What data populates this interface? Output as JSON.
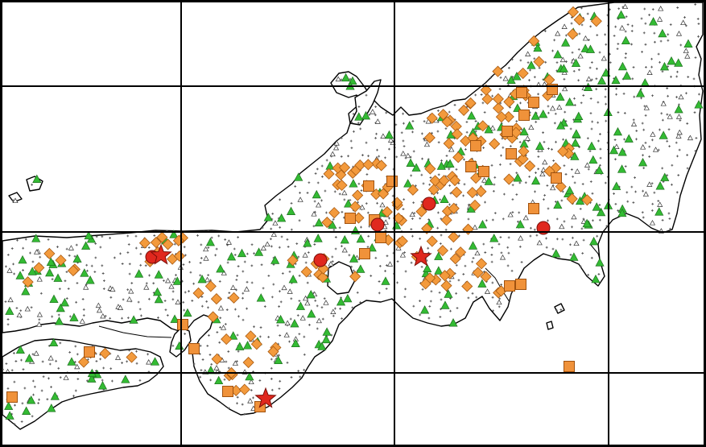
{
  "map": {
    "kind": "seismic-station-map",
    "region_name_on_screen": "",
    "colors": {
      "frame": "#000000",
      "coastline": "#000000",
      "land": "#ffffff",
      "grid": "#000000",
      "small_station": "#555555",
      "open_triangle_station": "#ffffff",
      "green_triangle_station": "#33bb33",
      "orange_diamond_station": "#f39a3c",
      "orange_square_station": "#f0923a",
      "red_circle_station": "#e0281e",
      "red_star_station": "#e0281e"
    },
    "marker_legend_icons": [
      "small-cross-station-icon",
      "open-triangle-station-icon",
      "green-triangle-station-icon",
      "orange-diamond-station-icon",
      "orange-square-station-icon",
      "red-circle-station-icon",
      "red-star-station-icon"
    ]
  }
}
